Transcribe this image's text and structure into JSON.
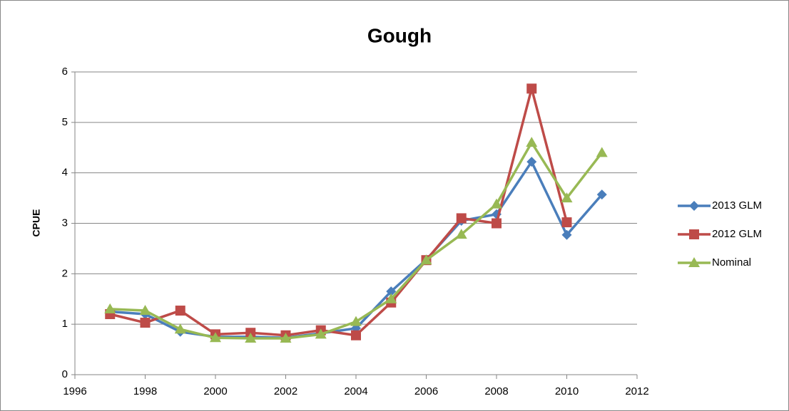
{
  "chart_data": {
    "type": "line",
    "title": "Gough",
    "y_label": "CPUE",
    "x": [
      1997,
      1998,
      1999,
      2000,
      2001,
      2002,
      2003,
      2004,
      2005,
      2006,
      2007,
      2008,
      2009,
      2010,
      2011
    ],
    "series": [
      {
        "name": "2013 GLM",
        "color": "#4a7ebb",
        "marker": "diamond",
        "values": [
          1.25,
          1.2,
          0.85,
          0.75,
          0.75,
          0.73,
          0.82,
          0.92,
          1.65,
          2.28,
          3.05,
          3.18,
          4.22,
          2.77,
          3.57
        ]
      },
      {
        "name": "2012 GLM",
        "color": "#be4b48",
        "marker": "square",
        "values": [
          1.2,
          1.03,
          1.27,
          0.8,
          0.83,
          0.78,
          0.88,
          0.78,
          1.43,
          2.27,
          3.1,
          3.0,
          5.67,
          3.02,
          null
        ]
      },
      {
        "name": "Nominal",
        "color": "#98b954",
        "marker": "triangle",
        "values": [
          1.3,
          1.27,
          0.9,
          0.73,
          0.72,
          0.72,
          0.8,
          1.05,
          1.5,
          2.27,
          2.78,
          3.38,
          4.6,
          3.5,
          4.4
        ]
      }
    ],
    "xlim": [
      1996,
      2012
    ],
    "xticks": [
      1996,
      1998,
      2000,
      2002,
      2004,
      2006,
      2008,
      2010,
      2012
    ],
    "ylim": [
      0,
      6
    ],
    "yticks": [
      0,
      1,
      2,
      3,
      4,
      5,
      6
    ],
    "grid": true,
    "legend": "right"
  }
}
